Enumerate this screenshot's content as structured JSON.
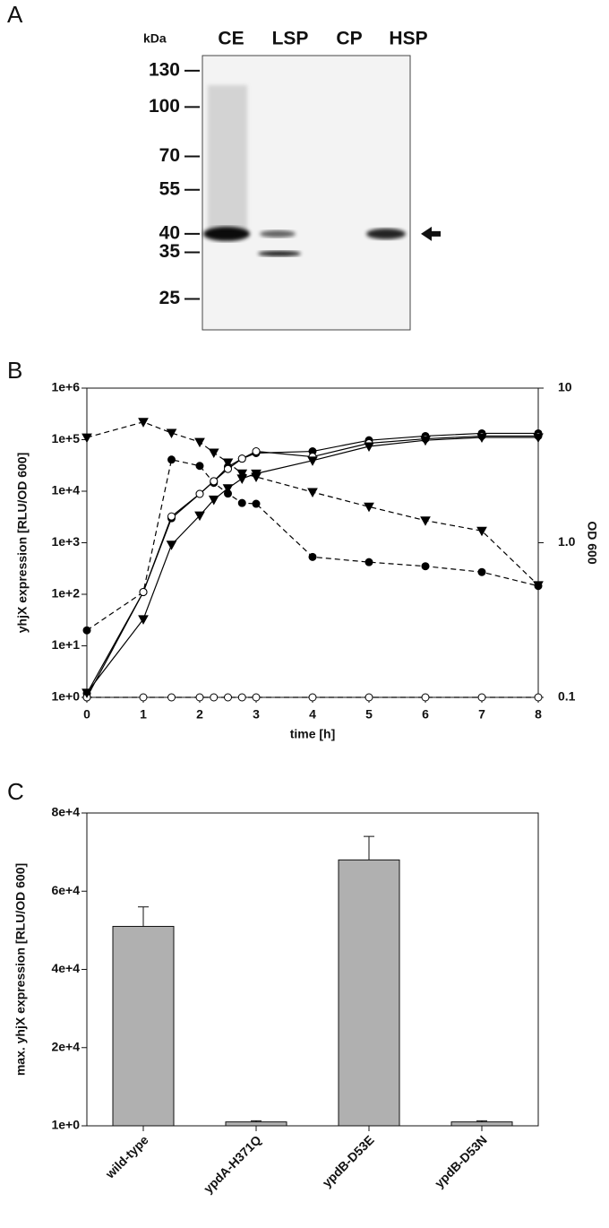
{
  "chart_data": [
    {
      "type": "blot",
      "panel_label": "A",
      "ylabel": "kDa",
      "categories": [
        "CE",
        "LSP",
        "CP",
        "HSP"
      ],
      "yticks": [
        130,
        100,
        70,
        55,
        40,
        35,
        25
      ],
      "ylim": [
        145,
        20
      ],
      "log": true
    },
    {
      "type": "line",
      "panel_label": "B",
      "xlabel": "time [h]",
      "ylabel": "yhjX expression [RLU/OD 600]",
      "y2label": "OD 600",
      "x": [
        0,
        1,
        1.5,
        2,
        2.25,
        2.5,
        2.75,
        3,
        4,
        5,
        6,
        7,
        8
      ],
      "xlim": [
        0,
        8
      ],
      "xticks": [
        0,
        1,
        2,
        3,
        4,
        5,
        6,
        7,
        8
      ],
      "ylim": [
        1,
        1000000
      ],
      "ylog": true,
      "yticks": [
        {
          "value": 1,
          "label": "1e+0"
        },
        {
          "value": 10,
          "label": "1e+1"
        },
        {
          "value": 100,
          "label": "1e+2"
        },
        {
          "value": 1000,
          "label": "1e+3"
        },
        {
          "value": 10000,
          "label": "1e+4"
        },
        {
          "value": 100000,
          "label": "1e+5"
        },
        {
          "value": 1000000,
          "label": "1e+6"
        }
      ],
      "y2lim": [
        0.1,
        10
      ],
      "y2log": true,
      "y2ticks": [
        0.1,
        {
          "value": 1,
          "label": "1.0"
        },
        10
      ],
      "series": [
        {
          "color": "#000000",
          "marker": "triangle-down",
          "fill": "#000000",
          "dashed": true,
          "values": [
            110000,
            220000,
            135000,
            90000,
            56000,
            36000,
            22000,
            19000,
            9600,
            5000,
            2700,
            1700,
            150
          ]
        },
        {
          "color": "#000000",
          "marker": "circle",
          "fill": "#000000",
          "dashed": true,
          "values": [
            20,
            110,
            41000,
            31000,
            14500,
            9000,
            5900,
            5700,
            530,
            420,
            350,
            270,
            145
          ]
        },
        {
          "color": "#000000",
          "marker": "circle",
          "fill": "#ffffff",
          "dashed": true,
          "values": [
            1,
            1,
            1,
            1,
            1,
            1,
            1,
            1,
            1,
            1,
            1,
            1,
            1
          ]
        },
        {
          "color": "#000000",
          "marker": "circle",
          "fill": "#000000",
          "dashed": false,
          "axis": "y2",
          "values": [
            0.106,
            0.48,
            1.44,
            2.07,
            2.5,
            3.1,
            3.5,
            3.8,
            3.9,
            4.6,
            4.9,
            5.1,
            5.1
          ]
        },
        {
          "color": "#000000",
          "marker": "circle",
          "fill": "#ffffff",
          "dashed": false,
          "axis": "y2",
          "values": [
            0.1,
            0.48,
            1.48,
            2.07,
            2.5,
            3.0,
            3.5,
            3.9,
            3.6,
            4.4,
            4.7,
            4.9,
            4.9
          ]
        },
        {
          "color": "#000000",
          "marker": "triangle-down",
          "fill": "#000000",
          "dashed": false,
          "axis": "y2",
          "values": [
            0.107,
            0.32,
            0.97,
            1.5,
            1.9,
            2.25,
            2.6,
            2.8,
            3.4,
            4.2,
            4.6,
            4.8,
            4.8
          ]
        }
      ]
    },
    {
      "type": "bar",
      "panel_label": "C",
      "ylabel": "max. yhjX expression [RLU/OD 600]",
      "categories": [
        "wild-type",
        "ypdA-H371Q",
        "ypdB-D53E",
        "ypdB-D53N"
      ],
      "values": [
        51000,
        1000,
        68000,
        1000
      ],
      "errors": [
        5000,
        300,
        6000,
        300
      ],
      "color": "#b0b0b0",
      "ylim": [
        1,
        80000
      ],
      "yticks": [
        {
          "value": 1,
          "label": "1e+0"
        },
        {
          "value": 20000,
          "label": "2e+4"
        },
        {
          "value": 40000,
          "label": "4e+4"
        },
        {
          "value": 60000,
          "label": "6e+4"
        },
        {
          "value": 80000,
          "label": "8e+4"
        }
      ]
    }
  ]
}
